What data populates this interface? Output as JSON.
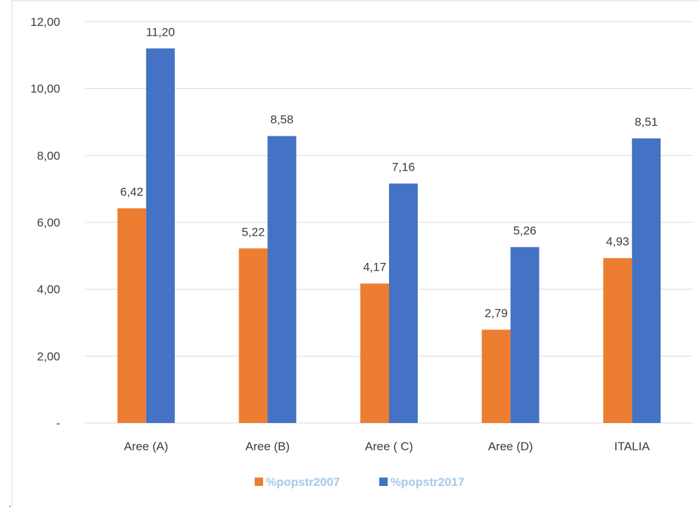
{
  "chart_data": {
    "type": "bar",
    "categories": [
      "Aree (A)",
      "Aree (B)",
      "Aree ( C)",
      "Aree (D)",
      "ITALIA"
    ],
    "series": [
      {
        "name": "%popstr2007",
        "values": [
          6.42,
          5.22,
          4.17,
          2.79,
          4.93
        ],
        "labels": [
          "6,42",
          "5,22",
          "4,17",
          "2,79",
          "4,93"
        ],
        "color": "#ED7D31"
      },
      {
        "name": "%popstr2017",
        "values": [
          11.2,
          8.58,
          7.16,
          5.26,
          8.51
        ],
        "labels": [
          "11,20",
          "8,58",
          "7,16",
          "5,26",
          "8,51"
        ],
        "color": "#4472C4"
      }
    ],
    "ylim": [
      0,
      12
    ],
    "yticks": [
      0,
      2,
      4,
      6,
      8,
      10,
      12
    ],
    "ytick_labels": [
      "-",
      "2,00",
      "4,00",
      "6,00",
      "8,00",
      "10,00",
      "12,00"
    ],
    "grid": true,
    "legend_position": "bottom",
    "legend_text_color": "#A6C8EC",
    "gridline_color": "#D9D9D9",
    "xlabel": "",
    "ylabel": "",
    "title": ""
  },
  "footnote_mark": "."
}
